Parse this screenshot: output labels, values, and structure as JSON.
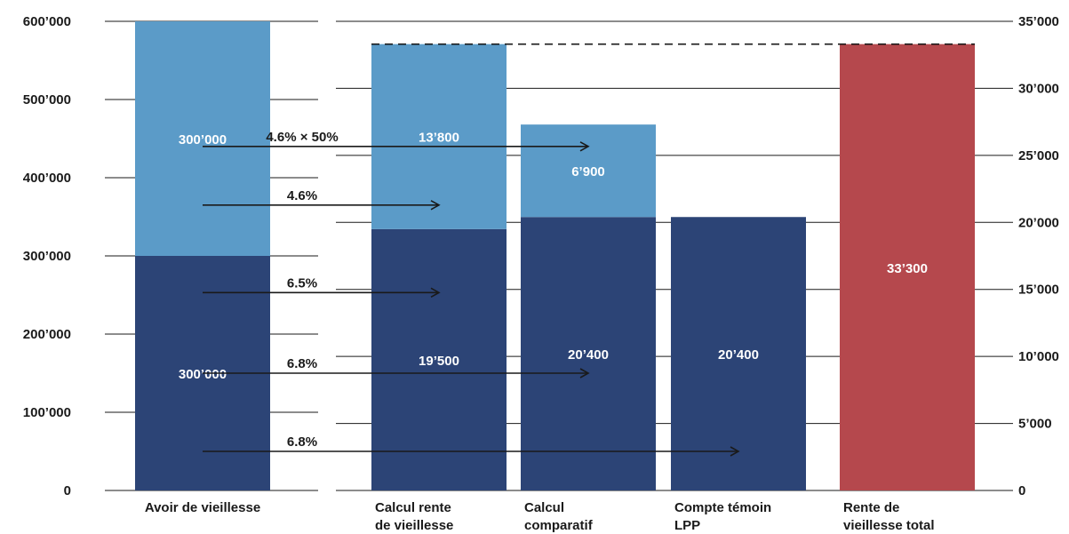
{
  "chart_data": {
    "type": "bar",
    "stacked": true,
    "grid": true,
    "left_axis": {
      "ylim": [
        0,
        600000
      ],
      "ticks": [
        {
          "value": 0,
          "label": "0"
        },
        {
          "value": 100000,
          "label": "100’000"
        },
        {
          "value": 200000,
          "label": "200’000"
        },
        {
          "value": 300000,
          "label": "300’000"
        },
        {
          "value": 400000,
          "label": "400’000"
        },
        {
          "value": 500000,
          "label": "500’000"
        },
        {
          "value": 600000,
          "label": "600’000"
        }
      ]
    },
    "right_axis": {
      "ylim": [
        0,
        35000
      ],
      "ticks": [
        {
          "value": 0,
          "label": "0"
        },
        {
          "value": 5000,
          "label": "5’000"
        },
        {
          "value": 10000,
          "label": "10’000"
        },
        {
          "value": 15000,
          "label": "15’000"
        },
        {
          "value": 20000,
          "label": "20’000"
        },
        {
          "value": 25000,
          "label": "25’000"
        },
        {
          "value": 30000,
          "label": "30’000"
        },
        {
          "value": 35000,
          "label": "35’000"
        }
      ]
    },
    "categories": [
      {
        "label_lines": [
          "Avoir de vieillesse"
        ],
        "axis": "left",
        "segments": [
          {
            "value": 300000,
            "label": "300’000",
            "color": "#2c4476"
          },
          {
            "value": 300000,
            "label": "300’000",
            "color": "#5b9bc8"
          }
        ]
      },
      {
        "label_lines": [
          "Calcul rente",
          "de vieillesse"
        ],
        "axis": "right",
        "segments": [
          {
            "value": 19500,
            "label": "19’500",
            "color": "#2c4476"
          },
          {
            "value": 13800,
            "label": "13’800",
            "color": "#5b9bc8"
          }
        ]
      },
      {
        "label_lines": [
          "Calcul",
          "comparatif"
        ],
        "axis": "right",
        "segments": [
          {
            "value": 20400,
            "label": "20’400",
            "color": "#2c4476"
          },
          {
            "value": 6900,
            "label": "6’900",
            "color": "#5b9bc8"
          }
        ]
      },
      {
        "label_lines": [
          "Compte témoin",
          "LPP"
        ],
        "axis": "right",
        "segments": [
          {
            "value": 20400,
            "label": "20’400",
            "color": "#2c4476"
          }
        ]
      },
      {
        "label_lines": [
          "Rente de",
          "vieillesse total"
        ],
        "axis": "right",
        "segments": [
          {
            "value": 33300,
            "label": "33’300",
            "color": "#b5484d"
          }
        ]
      }
    ],
    "reference_line": {
      "value": 33300,
      "axis": "right",
      "style": "dashed"
    },
    "annotations": [
      {
        "label": "4.6% × 50%",
        "from_category": 0,
        "to_category": 2,
        "level": 440000
      },
      {
        "label": "4.6%",
        "from_category": 0,
        "to_category": 1,
        "level": 365000
      },
      {
        "label": "6.5%",
        "from_category": 0,
        "to_category": 1,
        "level": 253000
      },
      {
        "label": "6.8%",
        "from_category": 0,
        "to_category": 2,
        "level": 150000
      },
      {
        "label": "6.8%",
        "from_category": 0,
        "to_category": 3,
        "level": 50000
      }
    ],
    "colors": {
      "axis_text": "#1a1a1a",
      "grid": "#1a1a1a",
      "bar_label": "#ffffff",
      "arrow": "#1a1a1a"
    }
  }
}
